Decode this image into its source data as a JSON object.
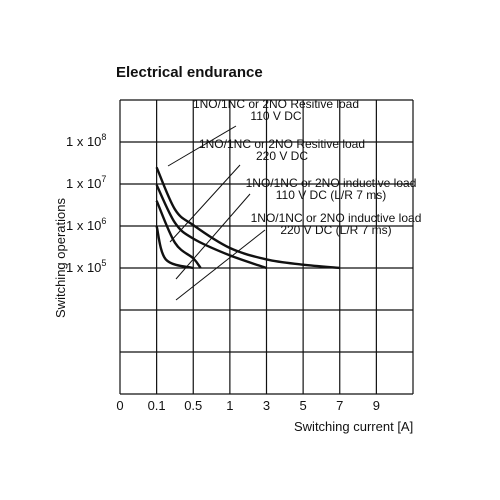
{
  "chart_data": {
    "type": "line",
    "title": "Electrical endurance",
    "ylabel": "Switching operations",
    "xlabel": "Switching current [A]",
    "x_tick_labels": [
      "0",
      "0.1",
      "0.5",
      "1",
      "3",
      "5",
      "7",
      "9"
    ],
    "y_ticks": [
      {
        "base": "1 x 10",
        "exp": "5"
      },
      {
        "base": "1 x 10",
        "exp": "6"
      },
      {
        "base": "1 x 10",
        "exp": "7"
      },
      {
        "base": "1 x 10",
        "exp": "8"
      }
    ],
    "yscale": "log",
    "ylim": [
      10000,
      100000000
    ],
    "grid": true,
    "series": [
      {
        "label_lines": [
          "1NO/1NC or 2NO Resitive load",
          "110 V DC"
        ],
        "points": [
          [
            0.1,
            25000000
          ],
          [
            0.3,
            2500000
          ],
          [
            0.5,
            1050000
          ],
          [
            1.0,
            300000
          ],
          [
            3.0,
            160000
          ],
          [
            5.0,
            120000
          ],
          [
            7.0,
            100000
          ]
        ]
      },
      {
        "label_lines": [
          "1NO/1NC or 2NO Resitive load",
          "220 V DC"
        ],
        "points": [
          [
            0.1,
            9500000
          ],
          [
            0.3,
            1200000
          ],
          [
            0.5,
            500000
          ],
          [
            1.0,
            200000
          ],
          [
            3.0,
            100000
          ]
        ]
      },
      {
        "label_lines": [
          "1NO/1NC or 2NO inductive load",
          "110 V DC (L/R 7 ms)"
        ],
        "points": [
          [
            0.1,
            4000000
          ],
          [
            0.3,
            400000
          ],
          [
            0.5,
            170000
          ],
          [
            0.6,
            100000
          ]
        ]
      },
      {
        "label_lines": [
          "1NO/1NC or 2NO inductive load",
          "220 V DC (L/R 7 ms)"
        ],
        "points": [
          [
            0.1,
            1000000
          ],
          [
            0.2,
            160000
          ],
          [
            0.5,
            100000
          ]
        ]
      }
    ]
  }
}
